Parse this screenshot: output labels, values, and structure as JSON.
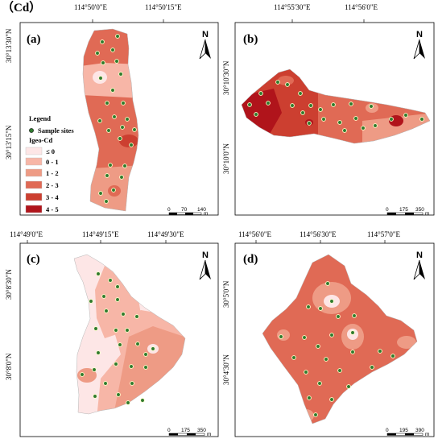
{
  "title": "（Cd）",
  "colors": {
    "class_le0": "#fde6e6",
    "class_0_1": "#f7b6a7",
    "class_1_2": "#ee9b85",
    "class_2_3": "#e06a55",
    "class_3_4": "#cc3f30",
    "class_4_5": "#b0141b",
    "site": "#2f7a2f"
  },
  "legend": {
    "title": "Legend",
    "sites_label": "Sample sites",
    "igeo_label": "Igeo-Cd",
    "classes": [
      "≤ 0",
      "0 - 1",
      "1 - 2",
      "2 - 3",
      "3 - 4",
      "4 - 5"
    ]
  },
  "north_label": "N",
  "panels": [
    {
      "label": "(a)",
      "top_ticks": [
        "114°50'0\"E",
        "114°50'15\"E"
      ],
      "left_ticks": [
        "30°13'30\"N",
        "30°13'15\"N"
      ],
      "scale": [
        "0",
        "70",
        "140"
      ],
      "unit": "m"
    },
    {
      "label": "(b)",
      "top_ticks": [
        "114°55'30\"E",
        "114°56'0\"E"
      ],
      "left_ticks": [
        "30°10'30\"N",
        "30°10'0\"N"
      ],
      "scale": [
        "0",
        "175",
        "350"
      ],
      "unit": "m"
    },
    {
      "label": "(c)",
      "top_ticks": [
        "114°49'0\"E",
        "114°49'15\"E",
        "114°49'30\"E"
      ],
      "left_ticks": [
        "30°8'30\"N",
        "30°8'0\"N"
      ],
      "scale": [
        "0",
        "175",
        "350"
      ],
      "unit": "m"
    },
    {
      "label": "(d)",
      "top_ticks": [
        "114°56'0\"E",
        "114°56'30\"E",
        "114°57'0\"E"
      ],
      "left_ticks": [
        "30°5'0\"N",
        "30°4'30\"N"
      ],
      "scale": [
        "0",
        "195",
        "390"
      ],
      "unit": "m"
    }
  ]
}
